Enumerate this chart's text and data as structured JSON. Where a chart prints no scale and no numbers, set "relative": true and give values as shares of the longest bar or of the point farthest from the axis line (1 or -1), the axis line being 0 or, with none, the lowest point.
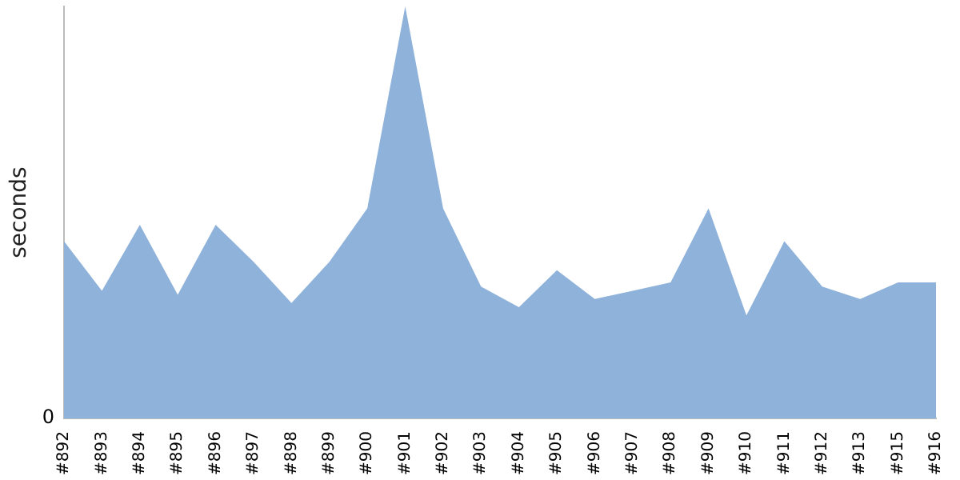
{
  "chart_data": {
    "type": "area",
    "relative": true,
    "ylabel": "seconds",
    "annotations": [
      "0"
    ],
    "legend": false,
    "grid": false,
    "categories": [
      "#892",
      "#893",
      "#894",
      "#895",
      "#896",
      "#897",
      "#898",
      "#899",
      "#900",
      "#901",
      "#902",
      "#903",
      "#904",
      "#905",
      "#906",
      "#907",
      "#908",
      "#909",
      "#910",
      "#911",
      "#912",
      "#913",
      "#915",
      "#916"
    ],
    "series": [
      {
        "color": "#8fb2da",
        "values": [
          0.43,
          0.31,
          0.47,
          0.3,
          0.47,
          0.38,
          0.28,
          0.38,
          0.51,
          1,
          0.51,
          0.32,
          0.27,
          0.36,
          0.29,
          0.31,
          0.33,
          0.51,
          0.25,
          0.43,
          0.32,
          0.29,
          0.33,
          0.33
        ]
      }
    ]
  }
}
